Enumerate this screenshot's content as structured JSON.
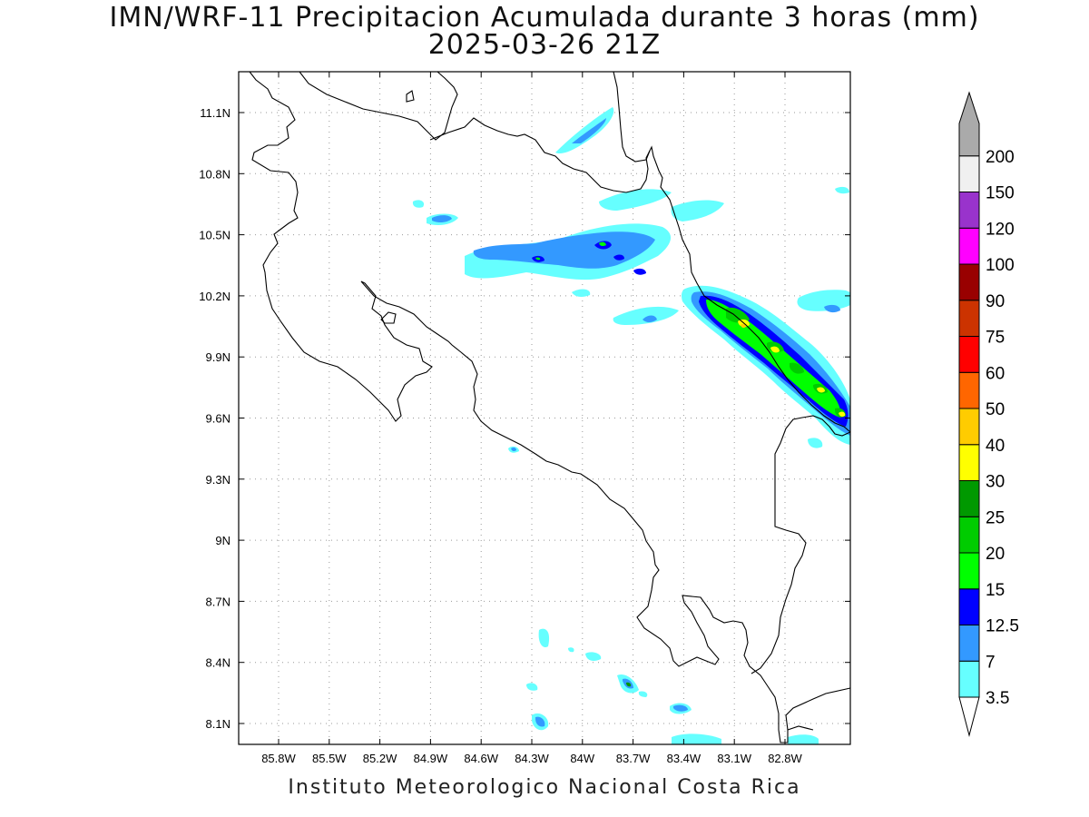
{
  "title_line1": "IMN/WRF-11 Precipitacion Acumulada durante 3 horas (mm)",
  "title_line2": "2025-03-26 21Z",
  "credit": "Instituto Meteorologico Nacional Costa Rica",
  "lon_ticks": [
    "85.8W",
    "85.5W",
    "85.2W",
    "84.9W",
    "84.6W",
    "84.3W",
    "84W",
    "83.7W",
    "83.4W",
    "83.1W",
    "82.8W"
  ],
  "lat_ticks": [
    "11.1N",
    "10.8N",
    "10.5N",
    "10.2N",
    "9.9N",
    "9.6N",
    "9.3N",
    "9N",
    "8.7N",
    "8.4N",
    "8.1N"
  ],
  "colorbar": {
    "labels": [
      "3.5",
      "7",
      "12.5",
      "15",
      "20",
      "25",
      "30",
      "40",
      "50",
      "60",
      "75",
      "90",
      "100",
      "120",
      "150",
      "200"
    ],
    "colors": [
      "#66ffff",
      "#3399ff",
      "#0000ff",
      "#00ff00",
      "#00cc00",
      "#009900",
      "#ffff00",
      "#ffcc00",
      "#ff6600",
      "#ff0000",
      "#cc3300",
      "#990000",
      "#ff00ff",
      "#9933cc",
      "#f0f0f0",
      "#aaaaaa"
    ]
  }
}
